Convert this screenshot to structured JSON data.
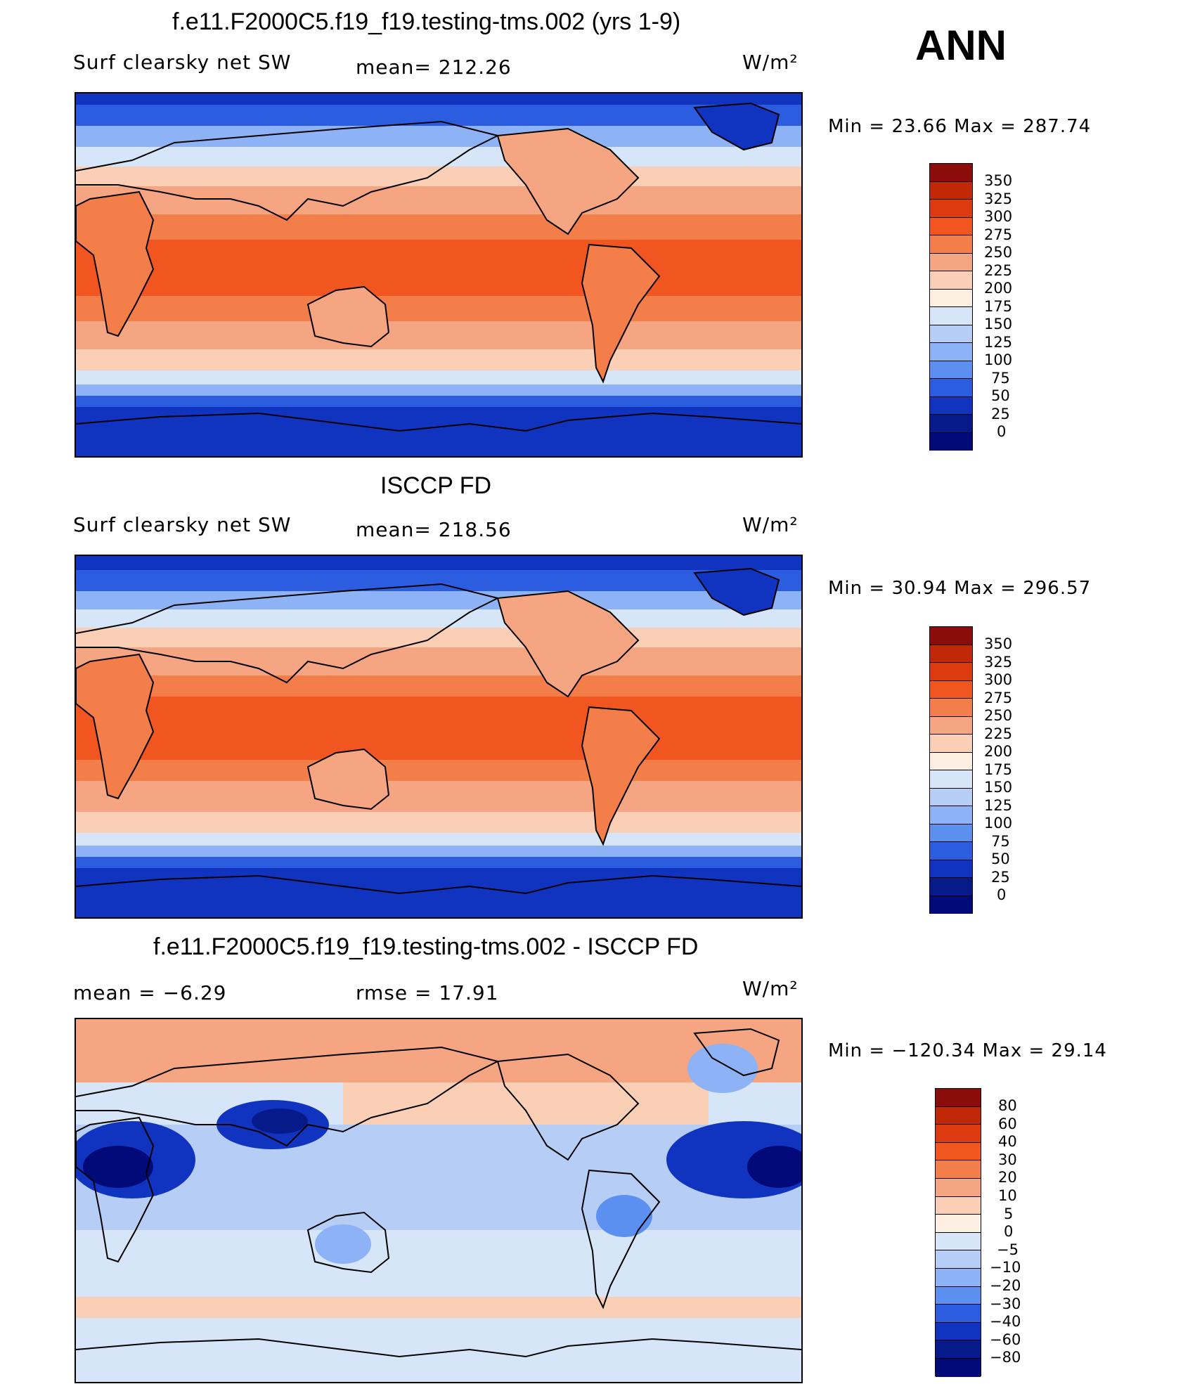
{
  "season": "ANN",
  "units": "W/m²",
  "panels": [
    {
      "title": "f.e11.F2000C5.f19_f19.testing-tms.002 (yrs 1-9)",
      "variable": "Surf clearsky net SW",
      "stat": "mean=  212.26",
      "minmax": "Min =   23.66  Max  =  287.74",
      "legend": {
        "labels": [
          "350",
          "325",
          "300",
          "275",
          "250",
          "225",
          "200",
          "175",
          "150",
          "125",
          "100",
          "75",
          "50",
          "25",
          "0"
        ],
        "colors": [
          "#8c0c0c",
          "#c02808",
          "#de3a10",
          "#f25620",
          "#f47e4a",
          "#f5a582",
          "#fbcfb6",
          "#fdf0e2",
          "#d6e5f8",
          "#b6cdf6",
          "#8eb2f6",
          "#5c90f0",
          "#2c5ce0",
          "#1034c0",
          "#061a8a",
          "#020a7a"
        ]
      }
    },
    {
      "title": "ISCCP FD",
      "variable": "Surf clearsky net SW",
      "stat": "mean=  218.56",
      "minmax": "Min =   30.94  Max  =  296.57",
      "legend": {
        "labels": [
          "350",
          "325",
          "300",
          "275",
          "250",
          "225",
          "200",
          "175",
          "150",
          "125",
          "100",
          "75",
          "50",
          "25",
          "0"
        ],
        "colors": [
          "#8c0c0c",
          "#c02808",
          "#de3a10",
          "#f25620",
          "#f47e4a",
          "#f5a582",
          "#fbcfb6",
          "#fdf0e2",
          "#d6e5f8",
          "#b6cdf6",
          "#8eb2f6",
          "#5c90f0",
          "#2c5ce0",
          "#1034c0",
          "#061a8a",
          "#020a7a"
        ]
      }
    },
    {
      "title": "f.e11.F2000C5.f19_f19.testing-tms.002 - ISCCP FD",
      "stat_left": "mean =    −6.29",
      "stat": "rmse  =    17.91",
      "minmax": "Min  = −120.34  Max  =    29.14",
      "legend": {
        "labels": [
          "80",
          "60",
          "40",
          "30",
          "20",
          "10",
          "5",
          "0",
          "−5",
          "−10",
          "−20",
          "−30",
          "−40",
          "−60",
          "−80"
        ],
        "colors": [
          "#8c0c0c",
          "#c02808",
          "#de3a10",
          "#f25620",
          "#f47e4a",
          "#f5a582",
          "#fbcfb6",
          "#fdf0e2",
          "#d6e5f8",
          "#b6cdf6",
          "#8eb2f6",
          "#5c90f0",
          "#2c5ce0",
          "#1034c0",
          "#061a8a",
          "#020a7a"
        ]
      }
    }
  ]
}
